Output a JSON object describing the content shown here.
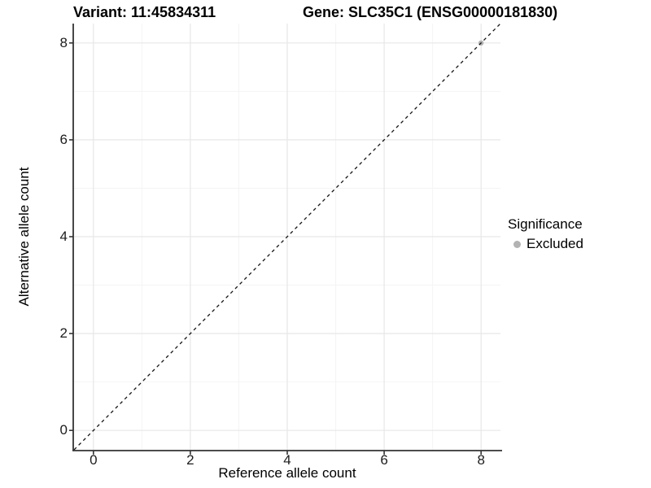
{
  "chart_data": {
    "type": "scatter",
    "titles": {
      "variant": "Variant: 11:45834311",
      "gene": "Gene: SLC35C1 (ENSG00000181830)"
    },
    "xlabel": "Reference allele count",
    "ylabel": "Alternative allele count",
    "xlim": [
      -0.4,
      8.4
    ],
    "ylim": [
      -0.4,
      8.4
    ],
    "x_ticks": [
      0,
      2,
      4,
      6,
      8
    ],
    "y_ticks": [
      0,
      2,
      4,
      6,
      8
    ],
    "x_minor_ticks": [
      1,
      3,
      5,
      7
    ],
    "y_minor_ticks": [
      1,
      3,
      5,
      7
    ],
    "grid": true,
    "legend": {
      "title": "Significance",
      "position": "right",
      "items": [
        {
          "label": "Excluded",
          "color": "#b3b3b3"
        }
      ]
    },
    "series": [
      {
        "name": "Excluded",
        "color": "#b3b3b3",
        "points": [
          {
            "x": 8,
            "y": 8
          }
        ]
      }
    ],
    "reference_line": {
      "type": "identity",
      "linetype": "dashed",
      "color": "#141414"
    }
  },
  "colors": {
    "grid_major": "#e7e7e7",
    "grid_minor": "#f4f4f4",
    "axis": "#333333",
    "background": "#ffffff"
  }
}
